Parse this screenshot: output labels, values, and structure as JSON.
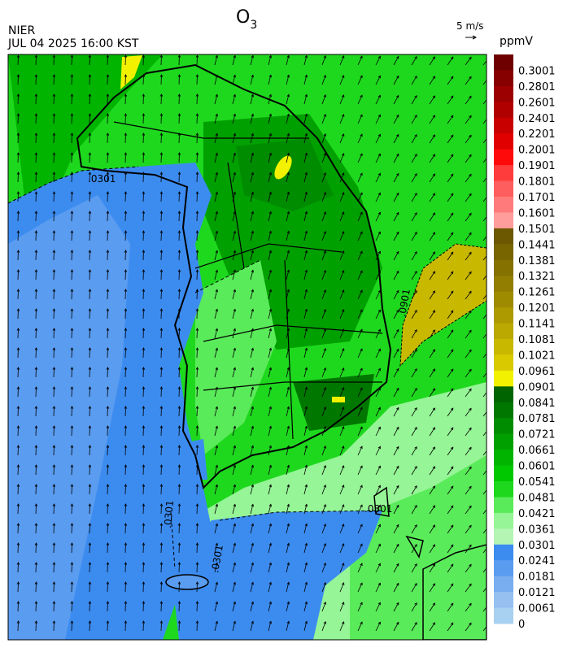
{
  "header": {
    "org": "NIER",
    "datetime": "JUL 04 2025 16:00 KST",
    "title": {
      "text": "O",
      "subscript": "3"
    },
    "wind_scale": "5 m/s"
  },
  "colorbar": {
    "unit": "ppmV",
    "levels": [
      {
        "label": "0.3001",
        "color": "#6e0000"
      },
      {
        "label": "0.2801",
        "color": "#870000"
      },
      {
        "label": "0.2601",
        "color": "#9c0000"
      },
      {
        "label": "0.2401",
        "color": "#b00000"
      },
      {
        "label": "0.2201",
        "color": "#c80000"
      },
      {
        "label": "0.2001",
        "color": "#e00000"
      },
      {
        "label": "0.1901",
        "color": "#ff0a0a"
      },
      {
        "label": "0.1801",
        "color": "#ff3c3c"
      },
      {
        "label": "0.1701",
        "color": "#ff5e5e"
      },
      {
        "label": "0.1601",
        "color": "#ff7b7b"
      },
      {
        "label": "0.1501",
        "color": "#ff9c9c"
      },
      {
        "label": "0.1441",
        "color": "#6b5800"
      },
      {
        "label": "0.1381",
        "color": "#786500"
      },
      {
        "label": "0.1321",
        "color": "#857100"
      },
      {
        "label": "0.1261",
        "color": "#927e00"
      },
      {
        "label": "0.1201",
        "color": "#9f8b00"
      },
      {
        "label": "0.1141",
        "color": "#ad9900"
      },
      {
        "label": "0.1081",
        "color": "#bba800"
      },
      {
        "label": "0.1021",
        "color": "#c9b800"
      },
      {
        "label": "0.0961",
        "color": "#d8c900"
      },
      {
        "label": "0.0901",
        "color": "#f2f200"
      },
      {
        "label": "0.0841",
        "color": "#006400"
      },
      {
        "label": "0.0781",
        "color": "#007800"
      },
      {
        "label": "0.0721",
        "color": "#008c00"
      },
      {
        "label": "0.0661",
        "color": "#00a000"
      },
      {
        "label": "0.0601",
        "color": "#00b400"
      },
      {
        "label": "0.0541",
        "color": "#00c800"
      },
      {
        "label": "0.0481",
        "color": "#1ed81e"
      },
      {
        "label": "0.0421",
        "color": "#5aeb5a"
      },
      {
        "label": "0.0361",
        "color": "#96f596"
      },
      {
        "label": "0.0301",
        "color": "#b4f5b4"
      },
      {
        "label": "0.0241",
        "color": "#3c8cf0"
      },
      {
        "label": "0.0181",
        "color": "#5a9cf0"
      },
      {
        "label": "0.0121",
        "color": "#78aef0"
      },
      {
        "label": "0.0061",
        "color": "#96c0f0"
      },
      {
        "label": "0",
        "color": "#a8d0f0"
      }
    ]
  },
  "contour_labels": [
    ".0301",
    ".0901",
    ".0301",
    ".0301",
    ".0301"
  ]
}
